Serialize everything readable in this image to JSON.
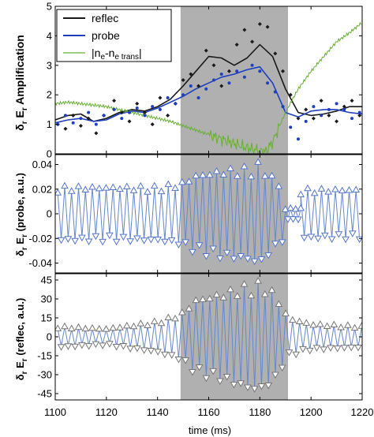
{
  "xlabel": "time (ms)",
  "colors": {
    "reflec": "#1a1a1a",
    "probe": "#1f3fbf",
    "density": "#66b032",
    "shade": "#b0b0b0",
    "osc_line": "#6688cc",
    "osc_marker_probe": "#5577cc",
    "osc_marker_reflec": "#777777"
  },
  "chart_data": [
    {
      "type": "line",
      "panel": "top",
      "ylabel_main": "Amplification",
      "ylabel_sym": "δ",
      "ylabel_sub": "r",
      "ylabel_sym2": "E",
      "ylabel_sub2": "r",
      "xlim": [
        1100,
        1220
      ],
      "ylim": [
        0,
        5
      ],
      "yticks": [
        0,
        1,
        2,
        3,
        4,
        5
      ],
      "xticks": [
        1100,
        1120,
        1140,
        1160,
        1180,
        1200,
        1220
      ],
      "shaded_region": [
        1149,
        1191
      ],
      "legend": {
        "position": "top-left",
        "entries": [
          "reflec",
          "probe"
        ],
        "density_entry": {
          "bar": "|",
          "n1": "n",
          "sub1": "e",
          "dash": "-n",
          "sub2": "e trans",
          "bar_end": "|"
        }
      },
      "series": [
        {
          "name": "reflec",
          "style": "line",
          "color_key": "reflec",
          "x": [
            1100,
            1105,
            1110,
            1115,
            1120,
            1125,
            1130,
            1135,
            1140,
            1145,
            1150,
            1155,
            1160,
            1165,
            1170,
            1175,
            1180,
            1185,
            1190,
            1195,
            1200,
            1205,
            1210,
            1215,
            1220
          ],
          "y": [
            1.15,
            1.3,
            1.35,
            1.1,
            1.2,
            1.4,
            1.5,
            1.45,
            1.6,
            1.85,
            2.3,
            2.8,
            3.3,
            3.25,
            3.0,
            3.25,
            3.7,
            3.3,
            2.2,
            1.4,
            1.3,
            1.35,
            1.45,
            1.6,
            1.6
          ]
        },
        {
          "name": "probe",
          "style": "line",
          "color_key": "probe",
          "x": [
            1100,
            1105,
            1110,
            1115,
            1120,
            1125,
            1130,
            1135,
            1140,
            1145,
            1150,
            1155,
            1160,
            1165,
            1170,
            1175,
            1180,
            1185,
            1190,
            1195,
            1200,
            1205,
            1210,
            1215,
            1220
          ],
          "y": [
            1.05,
            1.15,
            1.2,
            1.1,
            1.15,
            1.35,
            1.45,
            1.4,
            1.55,
            1.75,
            1.95,
            2.2,
            2.4,
            2.6,
            2.7,
            2.85,
            2.95,
            2.4,
            1.4,
            1.25,
            1.45,
            1.5,
            1.5,
            1.4,
            1.35
          ]
        },
        {
          "name": "density",
          "style": "line",
          "color_key": "density",
          "x": [
            1100,
            1105,
            1110,
            1115,
            1120,
            1125,
            1130,
            1135,
            1140,
            1145,
            1150,
            1155,
            1160,
            1165,
            1170,
            1175,
            1180,
            1182,
            1185,
            1190,
            1195,
            1200,
            1205,
            1210,
            1215,
            1220
          ],
          "y": [
            1.7,
            1.75,
            1.7,
            1.65,
            1.6,
            1.5,
            1.4,
            1.3,
            1.2,
            1.1,
            0.95,
            0.8,
            0.65,
            0.5,
            0.35,
            0.2,
            0.1,
            0.05,
            0.4,
            1.4,
            2.2,
            2.8,
            3.3,
            3.8,
            4.1,
            4.45
          ]
        },
        {
          "name": "reflec points",
          "style": "markers",
          "marker": "diamond",
          "color_key": "reflec",
          "x": [
            1101,
            1104,
            1107,
            1110,
            1113,
            1116,
            1119,
            1123,
            1126,
            1129,
            1132,
            1135,
            1138,
            1141,
            1144,
            1147,
            1150,
            1153,
            1156,
            1159,
            1162,
            1165,
            1168,
            1171,
            1174,
            1177,
            1180,
            1183,
            1186,
            1189,
            1192,
            1195,
            1198,
            1201,
            1204,
            1207,
            1210,
            1213,
            1216,
            1219
          ],
          "y": [
            1.0,
            0.85,
            1.3,
            0.95,
            1.2,
            0.7,
            1.3,
            1.8,
            1.4,
            1.1,
            1.7,
            1.4,
            1.0,
            1.9,
            1.3,
            1.7,
            2.5,
            2.7,
            2.3,
            3.5,
            3.0,
            2.3,
            2.8,
            3.7,
            4.2,
            3.8,
            4.4,
            4.3,
            3.4,
            2.8,
            2.0,
            1.2,
            1.5,
            1.2,
            1.8,
            1.3,
            1.1,
            1.6,
            1.8,
            1.3
          ]
        },
        {
          "name": "probe points",
          "style": "markers",
          "marker": "dot",
          "color_key": "probe",
          "x": [
            1101,
            1104,
            1107,
            1110,
            1113,
            1116,
            1119,
            1123,
            1126,
            1129,
            1132,
            1135,
            1138,
            1141,
            1144,
            1147,
            1150,
            1153,
            1156,
            1159,
            1162,
            1165,
            1168,
            1171,
            1174,
            1177,
            1180,
            1183,
            1186,
            1189,
            1192,
            1195,
            1198,
            1201,
            1204,
            1207,
            1210,
            1213,
            1216,
            1219
          ],
          "y": [
            1.0,
            1.3,
            1.05,
            1.2,
            1.4,
            1.0,
            1.3,
            1.5,
            1.2,
            1.4,
            1.55,
            1.3,
            1.6,
            1.5,
            1.9,
            1.7,
            2.0,
            2.3,
            1.9,
            2.2,
            2.5,
            2.7,
            2.4,
            2.8,
            2.6,
            3.0,
            2.8,
            2.4,
            2.1,
            1.6,
            0.9,
            0.5,
            1.1,
            1.6,
            1.3,
            1.5,
            1.7,
            1.5,
            1.2,
            1.4
          ]
        }
      ]
    },
    {
      "type": "line",
      "panel": "middle",
      "ylabel_sym": "δ",
      "ylabel_sub": "r",
      "ylabel_sym2": "E",
      "ylabel_sub2": "r",
      "ylabel_tail": "(probe, a.u.)",
      "xlim": [
        1100,
        1220
      ],
      "ylim": [
        -0.048,
        0.048
      ],
      "yticks": [
        -0.04,
        -0.02,
        0,
        0.02,
        0.04
      ],
      "ytick_labels": [
        "-0.04",
        "-0.02",
        "0",
        "0.02",
        "0.04"
      ],
      "shaded_region": [
        1149,
        1191
      ],
      "series": [
        {
          "name": "probe oscillation",
          "marker": "triangle",
          "color_key": "osc_line",
          "segments": [
            {
              "x_start": 1101,
              "x_end": 1190,
              "half_period": 1.35,
              "envelope_x": [
                1101,
                1120,
                1140,
                1149,
                1155,
                1165,
                1175,
                1180,
                1185,
                1190
              ],
              "envelope_y": [
                0.022,
                0.022,
                0.022,
                0.025,
                0.032,
                0.036,
                0.038,
                0.042,
                0.03,
                0.02
              ]
            },
            {
              "x_start": 1190,
              "x_end": 1196,
              "half_period": 1.0,
              "envelope_x": [
                1190,
                1196
              ],
              "envelope_y": [
                0.004,
                0.004
              ]
            },
            {
              "x_start": 1196,
              "x_end": 1220,
              "half_period": 1.35,
              "envelope_x": [
                1196,
                1220
              ],
              "envelope_y": [
                0.02,
                0.02
              ]
            }
          ]
        }
      ]
    },
    {
      "type": "line",
      "panel": "bottom",
      "ylabel_sym": "δ",
      "ylabel_sub": "r",
      "ylabel_sym2": "E",
      "ylabel_sub2": "r",
      "ylabel_tail": "(reflec, a.u.)",
      "xlim": [
        1100,
        1220
      ],
      "ylim": [
        -50,
        50
      ],
      "yticks": [
        -45,
        -30,
        -15,
        0,
        15,
        30,
        45
      ],
      "ytick_labels": [
        "-45",
        "-30",
        "-15",
        "0",
        "15",
        "30",
        "45"
      ],
      "shaded_region": [
        1149,
        1191
      ],
      "series": [
        {
          "name": "reflec oscillation",
          "marker": "triangle",
          "color_key": "osc_line",
          "segments": [
            {
              "x_start": 1101,
              "x_end": 1220,
              "half_period": 1.35,
              "envelope_x": [
                1101,
                1110,
                1120,
                1130,
                1140,
                1149,
                1155,
                1165,
                1175,
                1180,
                1186,
                1191,
                1200,
                1210,
                1220
              ],
              "envelope_y": [
                8,
                7,
                6,
                9,
                12,
                18,
                30,
                35,
                42,
                44,
                35,
                15,
                10,
                9,
                8
              ]
            }
          ]
        }
      ]
    }
  ]
}
